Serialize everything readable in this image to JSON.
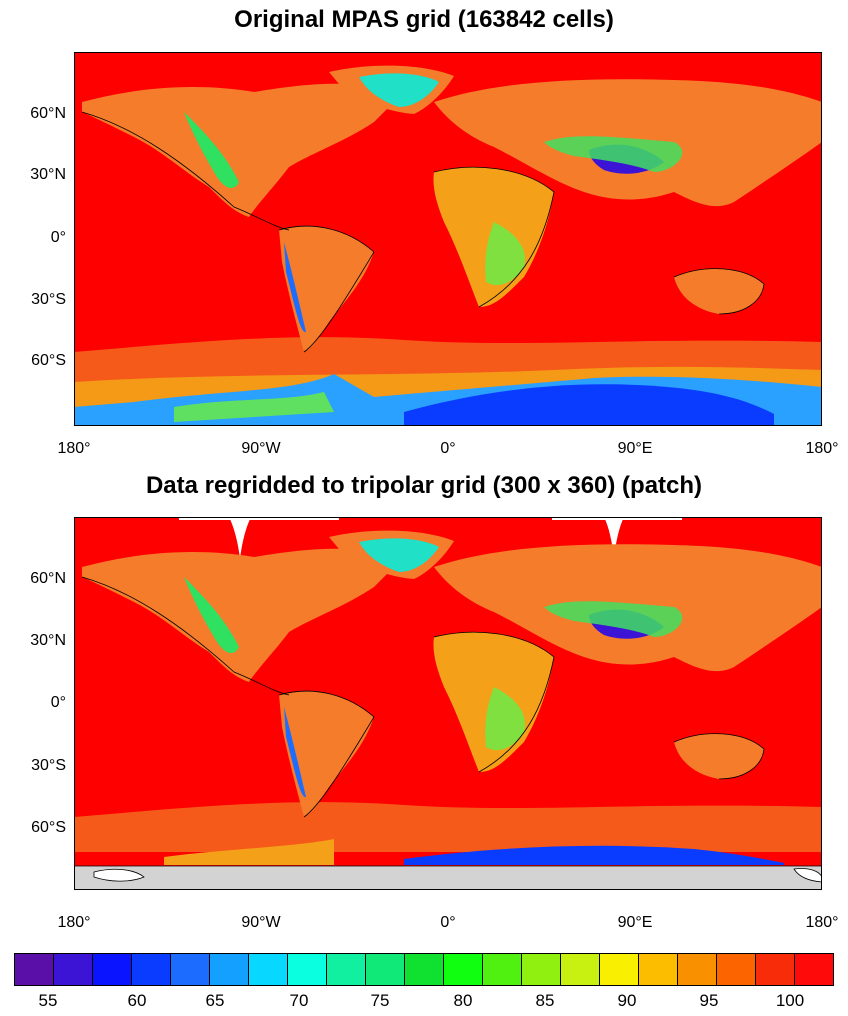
{
  "titles": {
    "top": "Original MPAS grid (163842 cells)",
    "bottom": "Data regridded to tripolar grid (300 x 360) (patch)"
  },
  "axes": {
    "y_ticks": [
      "60°N",
      "30°N",
      "0°",
      "30°S",
      "60°S"
    ],
    "x_ticks": [
      "180°",
      "90°W",
      "0°",
      "90°E",
      "180°"
    ]
  },
  "colorbar": {
    "labels": [
      "55",
      "60",
      "65",
      "70",
      "75",
      "80",
      "85",
      "90",
      "95",
      "100"
    ],
    "colors": [
      "#5a0fa8",
      "#3c14d6",
      "#0a14ff",
      "#0a3cff",
      "#1c6dff",
      "#14a0ff",
      "#08d8ff",
      "#0affe0",
      "#10f0a0",
      "#10e878",
      "#10e030",
      "#10ff10",
      "#50f010",
      "#90f010",
      "#c8f010",
      "#f8f000",
      "#fcbc00",
      "#f89000",
      "#fc6400",
      "#f82c08",
      "#ff0a0a"
    ]
  },
  "colors": {
    "ocean": "#ff0000",
    "land_warm": "#f57c2a",
    "land_mid": "#f4a018",
    "coast": "#000000",
    "missing": "#d3d3d3"
  }
}
